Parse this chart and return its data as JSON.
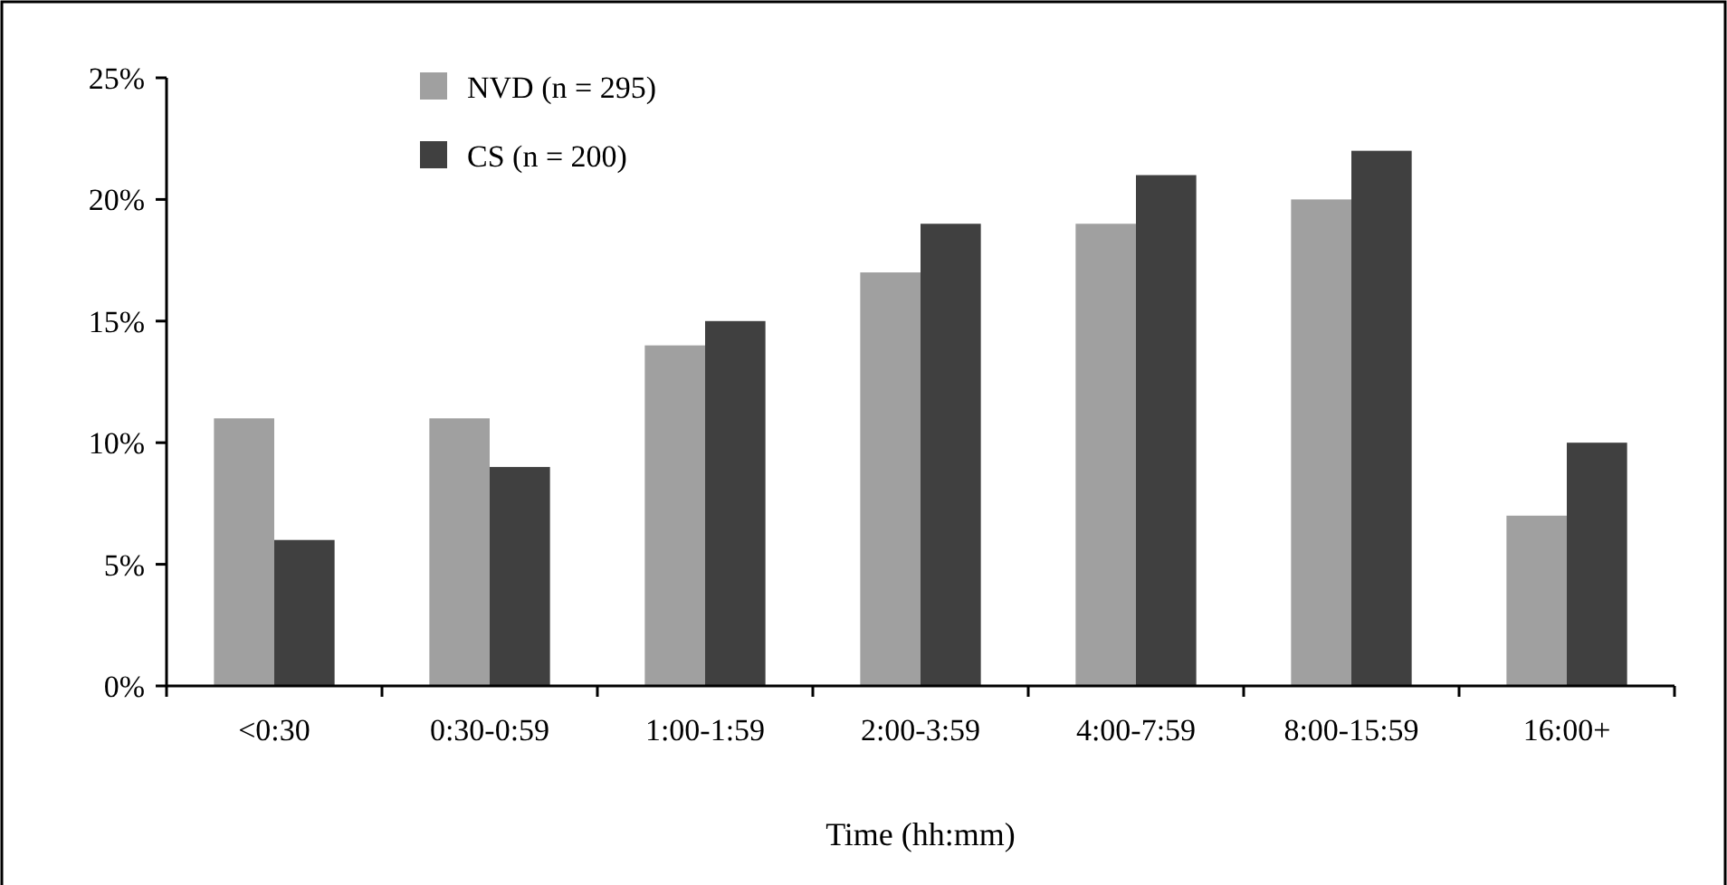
{
  "chart_data": {
    "type": "bar",
    "xlabel": "Time (hh:mm)",
    "categories": [
      "<0:30",
      "0:30-0:59",
      "1:00-1:59",
      "2:00-3:59",
      "4:00-7:59",
      "8:00-15:59",
      "16:00+"
    ],
    "series": [
      {
        "name": "NVD (n = 295)",
        "color": "#a0a0a0",
        "values": [
          11,
          11,
          14,
          17,
          19,
          20,
          7
        ]
      },
      {
        "name": "CS (n = 200)",
        "color": "#404040",
        "values": [
          6,
          9,
          15,
          19,
          21,
          22,
          10
        ]
      }
    ],
    "ylim": [
      0,
      25
    ],
    "yticks": [
      {
        "value": 0,
        "label": "0%"
      },
      {
        "value": 5,
        "label": "5%"
      },
      {
        "value": 10,
        "label": "10%"
      },
      {
        "value": 15,
        "label": "15%"
      },
      {
        "value": 20,
        "label": "20%"
      },
      {
        "value": 25,
        "label": "25%"
      }
    ],
    "legend": "top left",
    "grid": false
  }
}
